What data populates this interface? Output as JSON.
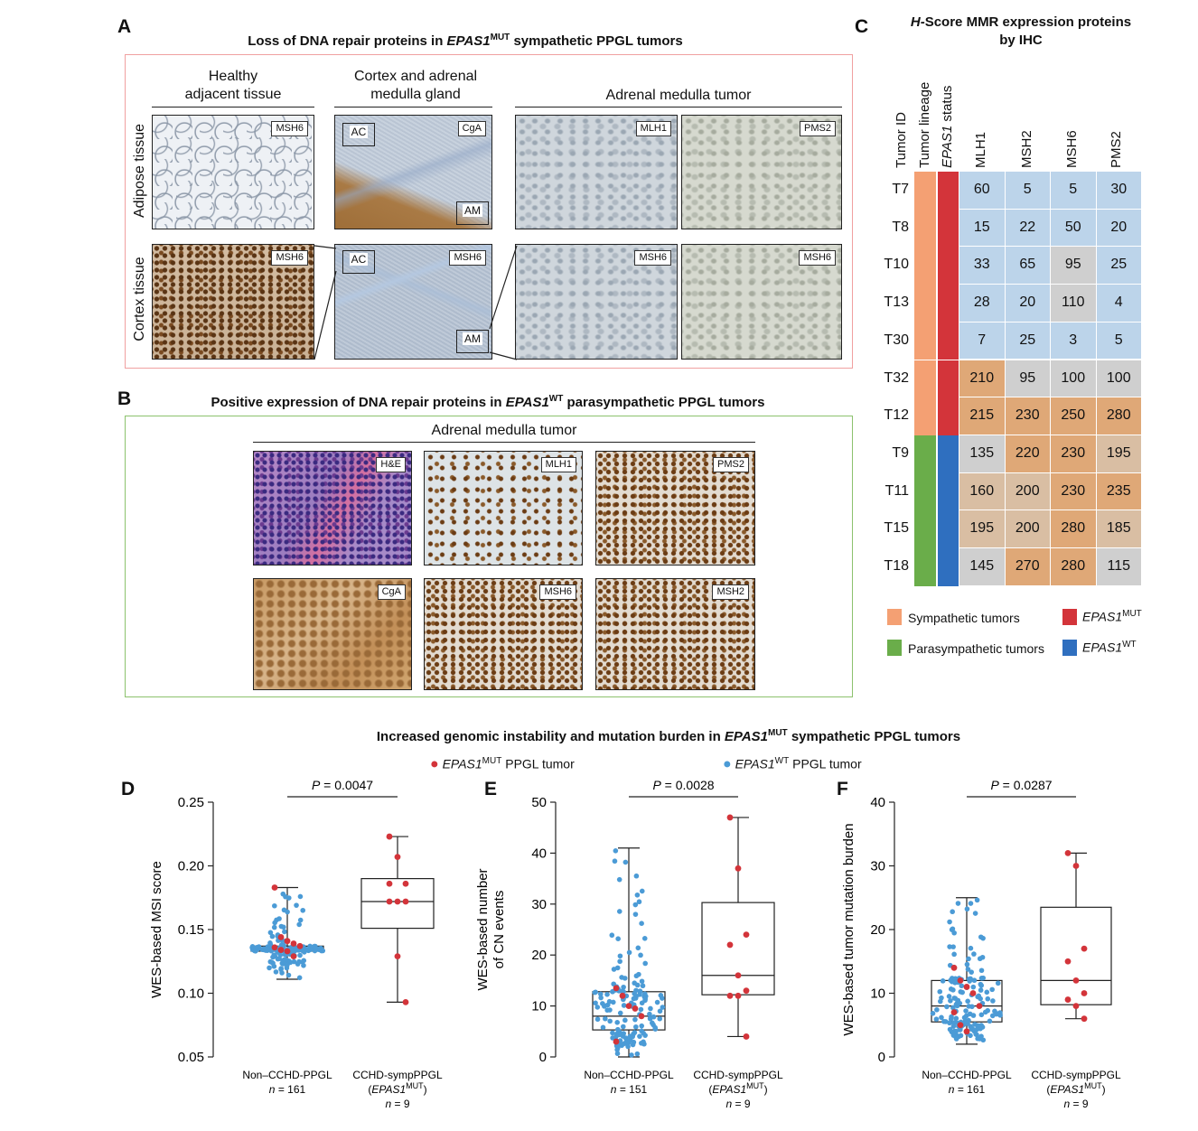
{
  "panels": {
    "a": {
      "letter": "A",
      "title_pre": "Loss of DNA repair proteins in ",
      "title_gene": "EPAS1",
      "title_sup": "MUT",
      "title_post": " sympathetic PPGL tumors",
      "col1": "Healthy\nadjacent tissue",
      "col2": "Cortex and adrenal\nmedulla gland",
      "col3": "Adrenal medulla tumor",
      "row1": "Adipose tissue",
      "row2": "Cortex tissue",
      "tags": {
        "r1c1": "MSH6",
        "r1c2": "CgA",
        "r1c3": "MLH1",
        "r1c4": "PMS2",
        "r2c1": "MSH6",
        "r2c2": "MSH6",
        "r2c3": "MSH6",
        "r2c4": "MSH6",
        "ac": "AC",
        "am": "AM"
      }
    },
    "b": {
      "letter": "B",
      "title_pre": "Positive expression of DNA repair proteins in ",
      "title_gene": "EPAS1",
      "title_sup": "WT",
      "title_post": " parasympathetic PPGL tumors",
      "col": "Adrenal medulla tumor",
      "tags": [
        "H&E",
        "MLH1",
        "PMS2",
        "CgA",
        "MSH6",
        "MSH2"
      ]
    },
    "c": {
      "letter": "C",
      "title_line1_italic": "H",
      "title_line1_rest": "-Score MMR expression proteins",
      "title_line2": "by IHC",
      "col_headers": [
        "Tumor ID",
        "Tumor lineage",
        "EPAS1 status",
        "MLH1",
        "MSH2",
        "MSH6",
        "PMS2"
      ],
      "rows": [
        {
          "id": "T7",
          "lineage": "symp",
          "status": "mut",
          "values": [
            60,
            5,
            5,
            30
          ]
        },
        {
          "id": "T8",
          "lineage": "symp",
          "status": "mut",
          "values": [
            15,
            22,
            50,
            20
          ]
        },
        {
          "id": "T10",
          "lineage": "symp",
          "status": "mut",
          "values": [
            33,
            65,
            95,
            25
          ]
        },
        {
          "id": "T13",
          "lineage": "symp",
          "status": "mut",
          "values": [
            28,
            20,
            110,
            4
          ]
        },
        {
          "id": "T30",
          "lineage": "symp",
          "status": "mut",
          "values": [
            7,
            25,
            3,
            5
          ]
        },
        {
          "id": "T32",
          "lineage": "symp",
          "status": "mut",
          "values": [
            210,
            95,
            100,
            100
          ]
        },
        {
          "id": "T12",
          "lineage": "symp",
          "status": "mut",
          "values": [
            215,
            230,
            250,
            280
          ]
        },
        {
          "id": "T9",
          "lineage": "para",
          "status": "wt",
          "values": [
            135,
            220,
            230,
            195
          ]
        },
        {
          "id": "T11",
          "lineage": "para",
          "status": "wt",
          "values": [
            160,
            200,
            230,
            235
          ]
        },
        {
          "id": "T15",
          "lineage": "para",
          "status": "wt",
          "values": [
            195,
            200,
            280,
            185
          ]
        },
        {
          "id": "T18",
          "lineage": "para",
          "status": "wt",
          "values": [
            145,
            270,
            280,
            115
          ]
        }
      ],
      "legend": {
        "symp": "Sympathetic tumors",
        "para": "Parasympathetic tumors",
        "mut_gene": "EPAS1",
        "mut_sup": "MUT",
        "wt_gene": "EPAS1",
        "wt_sup": "WT"
      },
      "colors": {
        "symp": "#f4a073",
        "para": "#6aad4a",
        "mut": "#d3343a",
        "wt": "#2f6fbf",
        "low": "#bcd4ea",
        "mid": "#cfcfcf",
        "high": "#dfa877"
      }
    },
    "def": {
      "title_pre": "Increased genomic instability and mutation burden in ",
      "title_gene": "EPAS1",
      "title_sup": "MUT",
      "title_post": " sympathetic PPGL tumors",
      "legend_mut_gene": "EPAS1",
      "legend_mut_sup": "MUT",
      "legend_mut_post": " PPGL tumor",
      "legend_wt_gene": "EPAS1",
      "legend_wt_sup": "WT",
      "legend_wt_post": " PPGL tumor"
    }
  },
  "chart_data": [
    {
      "panel": "D",
      "type": "box-swarm",
      "ylabel": "WES-based MSI score",
      "ylim": [
        0.05,
        0.25
      ],
      "yticks": [
        "0.05",
        "0.10",
        "0.15",
        "0.20",
        "0.25"
      ],
      "pvalue": "P = 0.0047",
      "categories": [
        {
          "label": "Non–CCHD-PPGL",
          "n": "n = 161",
          "sub": "",
          "box": {
            "min": 0.111,
            "q1": 0.133,
            "median": 0.135,
            "q3": 0.137,
            "max": 0.183
          },
          "red_points": [
            0.183,
            0.144,
            0.141,
            0.139,
            0.137,
            0.136,
            0.134,
            0.133,
            0.129
          ]
        },
        {
          "label": "CCHD-sympPPGL",
          "n": "n = 9",
          "sub_gene": "EPAS1",
          "sub_sup": "MUT",
          "box": {
            "min": 0.093,
            "q1": 0.151,
            "median": 0.172,
            "q3": 0.19,
            "max": 0.223
          },
          "red_points": [
            0.223,
            0.207,
            0.186,
            0.186,
            0.172,
            0.172,
            0.172,
            0.129,
            0.093
          ]
        }
      ]
    },
    {
      "panel": "E",
      "type": "box-swarm",
      "ylabel": "WES-based number\nof CN events",
      "ylim": [
        0,
        50
      ],
      "yticks": [
        "0",
        "10",
        "20",
        "30",
        "40",
        "50"
      ],
      "pvalue": "P = 0.0028",
      "categories": [
        {
          "label": "Non–CCHD-PPGL",
          "n": "n = 151",
          "box": {
            "min": 0,
            "q1": 5.3,
            "median": 8,
            "q3": 12.8,
            "max": 41
          },
          "red_points": [
            13.5,
            12,
            10,
            9.5,
            8,
            3
          ]
        },
        {
          "label": "CCHD-sympPPGL",
          "n": "n = 9",
          "sub_gene": "EPAS1",
          "sub_sup": "MUT",
          "box": {
            "min": 4,
            "q1": 12.2,
            "median": 16,
            "q3": 30.3,
            "max": 47
          },
          "red_points": [
            47,
            37,
            24,
            22,
            16,
            13,
            12,
            12,
            4
          ]
        }
      ]
    },
    {
      "panel": "F",
      "type": "box-swarm",
      "ylabel": "WES-based tumor mutation burden",
      "ylim": [
        0,
        40
      ],
      "yticks": [
        "0",
        "10",
        "20",
        "30",
        "40"
      ],
      "pvalue": "P = 0.0287",
      "categories": [
        {
          "label": "Non–CCHD-PPGL",
          "n": "n = 161",
          "box": {
            "min": 2,
            "q1": 5.5,
            "median": 8,
            "q3": 12,
            "max": 25
          },
          "red_points": [
            14,
            12,
            11,
            10,
            8,
            7,
            5,
            4
          ]
        },
        {
          "label": "CCHD-sympPPGL",
          "n": "n = 9",
          "sub_gene": "EPAS1",
          "sub_sup": "MUT",
          "box": {
            "min": 6,
            "q1": 8.2,
            "median": 12,
            "q3": 23.5,
            "max": 32
          },
          "red_points": [
            32,
            30,
            17,
            15,
            12,
            10,
            9,
            8,
            6
          ]
        }
      ]
    }
  ]
}
